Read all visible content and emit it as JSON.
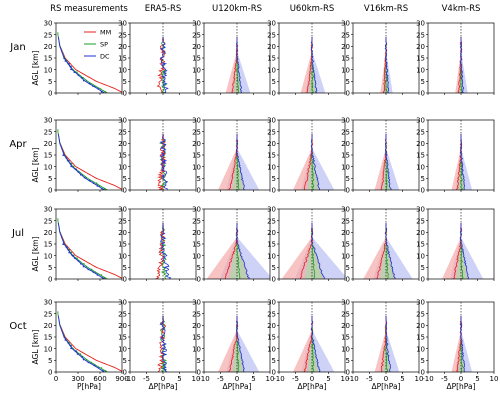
{
  "chart_data": {
    "type": "line",
    "column_titles": [
      "RS measurements",
      "ERA5-RS",
      "U120km-RS",
      "U60km-RS",
      "V16km-RS",
      "V4km-RS"
    ],
    "row_labels": [
      "Jan",
      "Apr",
      "Jul",
      "Oct"
    ],
    "ylabel": "AGL [km]",
    "xlabel_first": "P[hPa]",
    "xlabel_diff": "ΔP[hPa]",
    "ylim": [
      0,
      30
    ],
    "ytick_labels": [
      "0",
      "5",
      "10",
      "15",
      "20",
      "25",
      "30"
    ],
    "xlim_first": [
      0,
      900
    ],
    "xtick_labels_first": [
      "0",
      "300",
      "600",
      "900"
    ],
    "xlim_diff": [
      -10,
      10
    ],
    "xtick_labels_diff": [
      "-10",
      "-5",
      "0",
      "5",
      "10"
    ],
    "legend": [
      "MM",
      "SP",
      "DC"
    ],
    "legend_position": "top-right of first panel",
    "colors": {
      "MM": "#e8211c",
      "SP": "#1e9c2a",
      "DC": "#2030d8",
      "band_MM": "#f4a9a9",
      "band_SP": "#a9dca9",
      "band_DC": "#b8bff2"
    },
    "series_shape": {
      "MM": [
        [
          0,
          920
        ],
        [
          2,
          795
        ],
        [
          5,
          550
        ],
        [
          10,
          270
        ],
        [
          15,
          125
        ],
        [
          20,
          58
        ],
        [
          25,
          26
        ]
      ],
      "SP": [
        [
          0,
          700
        ],
        [
          2,
          590
        ],
        [
          5,
          430
        ],
        [
          10,
          230
        ],
        [
          15,
          115
        ],
        [
          20,
          55
        ],
        [
          25,
          26
        ]
      ],
      "DC": [
        [
          0,
          660
        ],
        [
          2,
          560
        ],
        [
          5,
          400
        ],
        [
          10,
          220
        ],
        [
          15,
          110
        ],
        [
          20,
          52
        ],
        [
          25,
          26
        ]
      ]
    },
    "top_km": {
      "MM": 20,
      "SP": 26,
      "DC": 24
    }
  }
}
